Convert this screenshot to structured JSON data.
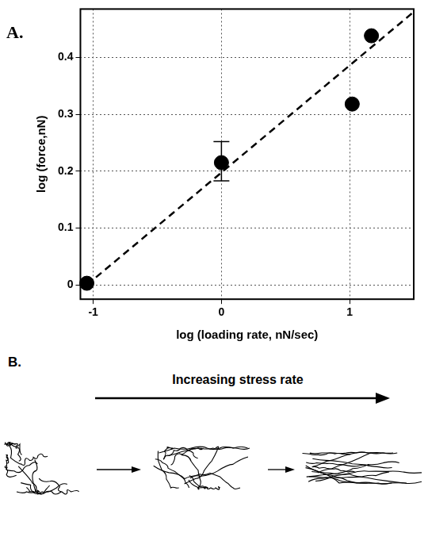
{
  "chart_data": {
    "type": "scatter",
    "x_label": "log (loading rate, nN/sec)",
    "y_label": "log (force,nN)",
    "x": [
      -1.05,
      0,
      1.02,
      1.17
    ],
    "values": [
      0.003,
      0.215,
      0.318,
      0.438
    ],
    "y_err_low": [
      null,
      0.183,
      null,
      null
    ],
    "y_err_high": [
      null,
      0.252,
      null,
      null
    ],
    "fit": {
      "x": [
        -1.05,
        1.5
      ],
      "y": [
        0,
        0.48
      ],
      "line_style": "dashed"
    },
    "color": "#000000",
    "marker": "circle",
    "xlim": [
      -1.1,
      1.5
    ],
    "ylim": [
      -0.025,
      0.485
    ],
    "xticks": [
      -1,
      0,
      1
    ],
    "yticks": [
      0,
      0.1,
      0.2,
      0.3,
      0.4
    ],
    "grid": true
  },
  "panel_a": {
    "label": "A."
  },
  "panel_b": {
    "label": "B.",
    "caption": "Increasing stress rate"
  }
}
